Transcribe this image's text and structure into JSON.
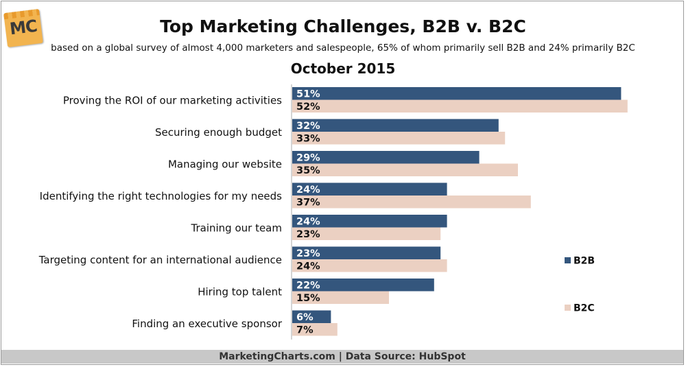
{
  "header": {
    "logo_text": "MC",
    "title": "Top Marketing Challenges, B2B v. B2C",
    "subtitle": "based on a global survey of almost 4,000 marketers and salespeople, 65% of whom primarily sell B2B and 24% primarily B2C",
    "date": "October 2015"
  },
  "footer": {
    "text": "MarketingCharts.com | Data Source: HubSpot"
  },
  "chart_data": {
    "type": "bar",
    "orientation": "horizontal",
    "categories": [
      "Proving the ROI of our marketing activities",
      "Securing enough budget",
      "Managing our website",
      "Identifying the right technologies for my needs",
      "Training our team",
      "Targeting content for an international audience",
      "Hiring top talent",
      "Finding an executive sponsor"
    ],
    "series": [
      {
        "name": "B2B",
        "values": [
          51,
          32,
          29,
          24,
          24,
          23,
          22,
          6
        ],
        "color": "#34567d",
        "label_color": "#ffffff"
      },
      {
        "name": "B2C",
        "values": [
          52,
          33,
          35,
          37,
          23,
          24,
          15,
          7
        ],
        "color": "#ebd0c2",
        "label_color": "#111111"
      }
    ],
    "value_suffix": "%",
    "xlim": [
      0,
      55
    ],
    "grid": false,
    "legend_position": "right"
  }
}
